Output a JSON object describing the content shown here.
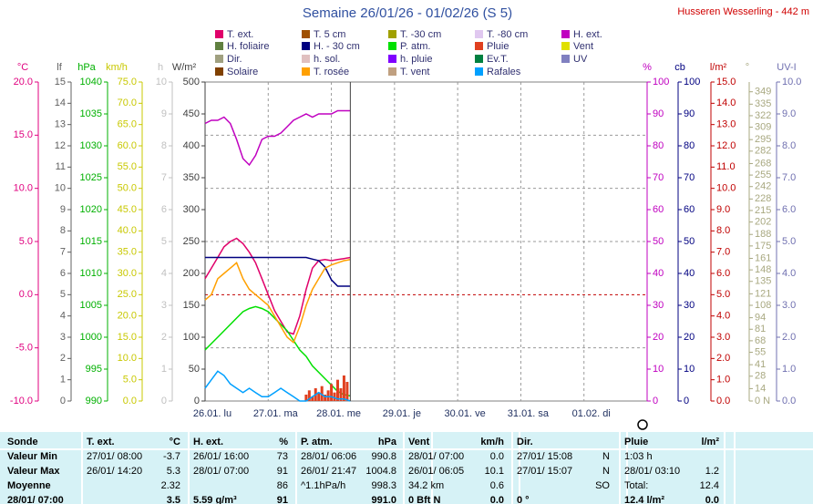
{
  "chart_data": {
    "type": "line",
    "title": "Semaine 26/01/26 - 01/02/26 (S 5)",
    "subtitle": "Husseren Wesserling - 442 m",
    "grid": true,
    "zero_line_color": "#c00000",
    "xlim": [
      0,
      7
    ],
    "xticks": [
      {
        "value": 0,
        "label": "26.01. lu"
      },
      {
        "value": 1,
        "label": "27.01. ma"
      },
      {
        "value": 2,
        "label": "28.01. me"
      },
      {
        "value": 3,
        "label": "29.01. je"
      },
      {
        "value": 4,
        "label": "30.01. ve"
      },
      {
        "value": 5,
        "label": "31.01. sa"
      },
      {
        "value": 6,
        "label": "01.02. di"
      }
    ],
    "x": [
      0,
      0.1,
      0.2,
      0.3,
      0.4,
      0.5,
      0.6,
      0.7,
      0.8,
      0.9,
      1.0,
      1.1,
      1.2,
      1.3,
      1.4,
      1.5,
      1.6,
      1.7,
      1.8,
      1.9,
      2.0,
      2.1,
      2.2,
      2.3
    ],
    "axes": [
      {
        "label": "°C",
        "side": "left",
        "color": "#e0007f",
        "lim": [
          -10,
          20
        ],
        "ticks": [
          {
            "value": -10,
            "label": "-10.0"
          },
          {
            "value": -5,
            "label": "-5.0"
          },
          {
            "value": 0,
            "label": "0.0"
          },
          {
            "value": 5,
            "label": "5.0"
          },
          {
            "value": 10,
            "label": "10.0"
          },
          {
            "value": 15,
            "label": "15.0"
          },
          {
            "value": 20,
            "label": "20.0"
          }
        ]
      },
      {
        "label": "lf",
        "side": "left",
        "color": "#606060",
        "lim": [
          0,
          15
        ],
        "ticks": [
          0,
          1,
          2,
          3,
          4,
          5,
          6,
          7,
          8,
          9,
          10,
          11,
          12,
          13,
          14,
          15
        ]
      },
      {
        "label": "hPa",
        "side": "left",
        "color": "#00b000",
        "lim": [
          990,
          1040
        ],
        "ticks": [
          990,
          995,
          1000,
          1005,
          1010,
          1015,
          1020,
          1025,
          1030,
          1035,
          1040
        ]
      },
      {
        "label": "km/h",
        "side": "left",
        "color": "#c8c800",
        "lim": [
          0,
          75
        ],
        "ticks": [
          {
            "value": 0,
            "label": "0.0"
          },
          {
            "value": 5,
            "label": "5.0"
          },
          {
            "value": 10,
            "label": "10.0"
          },
          {
            "value": 15,
            "label": "15.0"
          },
          {
            "value": 20,
            "label": "20.0"
          },
          {
            "value": 25,
            "label": "25.0"
          },
          {
            "value": 30,
            "label": "30.0"
          },
          {
            "value": 35,
            "label": "35.0"
          },
          {
            "value": 40,
            "label": "40.0"
          },
          {
            "value": 45,
            "label": "45.0"
          },
          {
            "value": 50,
            "label": "50.0"
          },
          {
            "value": 55,
            "label": "55.0"
          },
          {
            "value": 60,
            "label": "60.0"
          },
          {
            "value": 65,
            "label": "65.0"
          },
          {
            "value": 70,
            "label": "70.0"
          },
          {
            "value": 75,
            "label": "75.0"
          }
        ]
      },
      {
        "label": "h",
        "side": "left",
        "color": "#c0c0c0",
        "lim": [
          0,
          10
        ],
        "ticks": [
          0,
          1,
          2,
          3,
          4,
          5,
          6,
          7,
          8,
          9,
          10
        ]
      },
      {
        "label": "W/m²",
        "side": "left",
        "color": "#404040",
        "lim": [
          0,
          500
        ],
        "ticks": [
          0,
          50,
          100,
          150,
          200,
          250,
          300,
          350,
          400,
          450,
          500
        ]
      },
      {
        "label": "%",
        "side": "right",
        "color": "#c000c0",
        "lim": [
          0,
          100
        ],
        "ticks": [
          0,
          10,
          20,
          30,
          40,
          50,
          60,
          70,
          80,
          90,
          100
        ]
      },
      {
        "label": "cb",
        "side": "right",
        "color": "#000080",
        "lim": [
          0,
          100
        ],
        "ticks": [
          0,
          10,
          20,
          30,
          40,
          50,
          60,
          70,
          80,
          90,
          100
        ]
      },
      {
        "label": "l/m²",
        "side": "right",
        "color": "#c00000",
        "lim": [
          0,
          15
        ],
        "ticks": [
          {
            "value": 0,
            "label": "0.0"
          },
          {
            "value": 1,
            "label": "1.0"
          },
          {
            "value": 2,
            "label": "2.0"
          },
          {
            "value": 3,
            "label": "3.0"
          },
          {
            "value": 4,
            "label": "4.0"
          },
          {
            "value": 5,
            "label": "5.0"
          },
          {
            "value": 6,
            "label": "6.0"
          },
          {
            "value": 7,
            "label": "7.0"
          },
          {
            "value": 8,
            "label": "8.0"
          },
          {
            "value": 9,
            "label": "9.0"
          },
          {
            "value": 10,
            "label": "10.0"
          },
          {
            "value": 11,
            "label": "11.0"
          },
          {
            "value": 12,
            "label": "12.0"
          },
          {
            "value": 13,
            "label": "13.0"
          },
          {
            "value": 14,
            "label": "14.0"
          },
          {
            "value": 15,
            "label": "15.0"
          }
        ]
      },
      {
        "label": "°",
        "side": "right",
        "color": "#a8a880",
        "lim": [
          0,
          360
        ],
        "ticks": [
          {
            "value": 0,
            "label": "0  N"
          },
          14,
          28,
          41,
          55,
          68,
          81,
          94,
          108,
          121,
          135,
          148,
          161,
          175,
          188,
          202,
          215,
          228,
          242,
          255,
          268,
          282,
          295,
          309,
          322,
          335,
          349
        ]
      },
      {
        "label": "UV-I",
        "side": "right",
        "color": "#7070b0",
        "lim": [
          0,
          10
        ],
        "ticks": [
          {
            "value": 0,
            "label": "0.0"
          },
          {
            "value": 1,
            "label": "1.0"
          },
          {
            "value": 2,
            "label": "2.0"
          },
          {
            "value": 3,
            "label": "3.0"
          },
          {
            "value": 4,
            "label": "4.0"
          },
          {
            "value": 5,
            "label": "5.0"
          },
          {
            "value": 6,
            "label": "6.0"
          },
          {
            "value": 7,
            "label": "7.0"
          },
          {
            "value": 8,
            "label": "8.0"
          },
          {
            "value": 9,
            "label": "9.0"
          },
          {
            "value": 10,
            "label": "10.0"
          }
        ]
      }
    ],
    "series": [
      {
        "name": "T. ext.",
        "color": "#e0006a",
        "axis": "°C",
        "values": [
          1.5,
          2.5,
          3.5,
          4.5,
          5.0,
          5.3,
          4.8,
          4.0,
          3.0,
          1.5,
          0.0,
          -1.5,
          -2.5,
          -3.5,
          -3.7,
          -2.0,
          0.5,
          2.5,
          3.2,
          3.3,
          3.2,
          3.3,
          3.4,
          3.5
        ]
      },
      {
        "name": "T. 5 cm",
        "color": "#a05000"
      },
      {
        "name": "T. -30 cm",
        "color": "#a0a000"
      },
      {
        "name": "T. -80 cm",
        "color": "#e0c8f0"
      },
      {
        "name": "H. ext.",
        "color": "#c000c0",
        "axis": "%",
        "values": [
          87,
          88,
          88,
          89,
          87,
          82,
          76,
          74,
          77,
          82,
          83,
          83,
          84,
          86,
          88,
          89,
          90,
          89,
          90,
          90,
          90,
          91,
          91,
          91
        ]
      },
      {
        "name": "H. foliaire",
        "color": "#608040"
      },
      {
        "name": "H. - 30 cm",
        "color": "#000080",
        "axis": "cb",
        "values": [
          45,
          45,
          45,
          45,
          45,
          45,
          45,
          45,
          45,
          45,
          45,
          45,
          45,
          45,
          45,
          45,
          45,
          44.5,
          44,
          42,
          38,
          36,
          36,
          36
        ]
      },
      {
        "name": "P. atm.",
        "color": "#00e000",
        "axis": "hPa",
        "values": [
          998,
          999,
          1000,
          1001,
          1002,
          1003,
          1004,
          1004.5,
          1004.8,
          1004.5,
          1004,
          1003,
          1002,
          1001,
          999.5,
          998,
          997,
          995.5,
          994.5,
          993.5,
          992.5,
          991.5,
          991,
          990.8
        ]
      },
      {
        "name": "Pluie",
        "color": "#e04020",
        "axis": "l/m²",
        "style": "bars",
        "x": [
          1.6,
          1.65,
          1.7,
          1.75,
          1.8,
          1.85,
          1.9,
          1.95,
          2.0,
          2.05,
          2.1,
          2.15,
          2.2,
          2.25
        ],
        "values": [
          0.3,
          0.5,
          0.2,
          0.6,
          0.4,
          0.7,
          0.3,
          0.5,
          0.8,
          0.4,
          1.0,
          0.6,
          1.2,
          0.9
        ]
      },
      {
        "name": "Vent",
        "color": "#e0e000"
      },
      {
        "name": "Dir.",
        "color": "#a0a080"
      },
      {
        "name": "h. sol.",
        "color": "#e0c0c0"
      },
      {
        "name": "h. pluie",
        "color": "#8000ff"
      },
      {
        "name": "Ev.T.",
        "color": "#008040"
      },
      {
        "name": "UV",
        "color": "#8080c0"
      },
      {
        "name": "Solaire",
        "color": "#804000"
      },
      {
        "name": "T. rosée",
        "color": "#ffa000",
        "axis": "°C",
        "values": [
          -0.5,
          0,
          1.5,
          2,
          2.5,
          3,
          1.5,
          0.5,
          0,
          -0.5,
          -1,
          -2,
          -3,
          -4,
          -4.5,
          -3,
          -1,
          0.5,
          1.5,
          2.5,
          2.8,
          3,
          3.2,
          3.3
        ]
      },
      {
        "name": "T. vent",
        "color": "#c0a080"
      },
      {
        "name": "Rafales",
        "color": "#00a0ff",
        "axis": "km/h",
        "values": [
          3,
          5,
          7,
          6,
          4,
          3,
          2,
          3,
          2,
          1,
          1,
          2,
          3,
          2,
          1,
          0,
          0,
          1,
          2,
          1,
          1,
          0.5,
          0.5,
          0
        ]
      }
    ]
  },
  "table": {
    "header": [
      "Sonde",
      "T. ext.",
      "°C",
      "H. ext.",
      "%",
      "P. atm.",
      "hPa",
      "Vent",
      "km/h",
      "Dir.",
      null,
      "Pluie",
      "l/m²"
    ],
    "rows": [
      [
        "Valeur Min",
        "27/01/ 08:00",
        "-3.7",
        "26/01/ 16:00",
        "73",
        "28/01/ 06:06",
        "990.8",
        "28/01/ 07:00",
        "0.0",
        "27/01/ 15:08",
        "N",
        "1:03 h",
        null
      ],
      [
        "Valeur Max",
        "26/01/ 14:20",
        "5.3",
        "28/01/ 07:00",
        "91",
        "26/01/ 21:47",
        "1004.8",
        "26/01/ 06:05",
        "10.1",
        "27/01/ 15:07",
        "N",
        "28/01/ 03:10",
        "1.2"
      ],
      [
        "Moyenne",
        null,
        "2.32",
        null,
        "86",
        "^1.1hPa/h",
        "998.3",
        "34.2 km",
        "0.6",
        null,
        "SO",
        "Total:",
        "12.4"
      ],
      [
        "28/01/ 07:00",
        null,
        "3.5",
        "5.59 g/m³",
        "91",
        null,
        "991.0",
        "0 Bft N",
        "0.0",
        "0 °",
        null,
        "12.4 l/m²",
        "0.0"
      ]
    ]
  }
}
